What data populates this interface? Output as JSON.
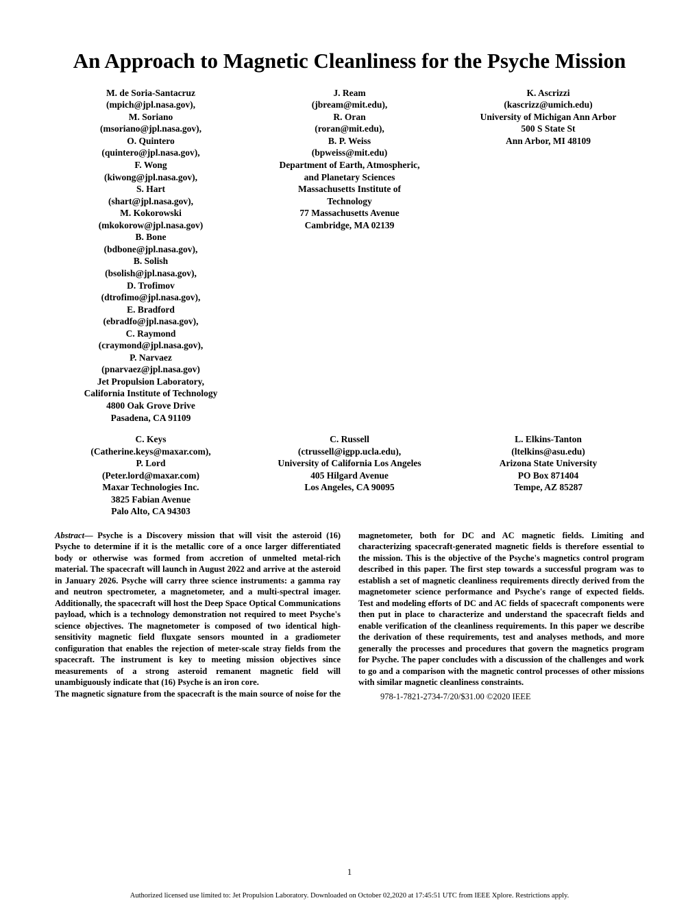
{
  "title": "An Approach to Magnetic Cleanliness for the Psyche Mission",
  "author_row1": {
    "col1": "M. de Soria-Santacruz\n(mpich@jpl.nasa.gov),\nM. Soriano\n(msoriano@jpl.nasa.gov),\nO. Quintero\n(quintero@jpl.nasa.gov),\nF. Wong\n(kiwong@jpl.nasa.gov),\nS. Hart\n(shart@jpl.nasa.gov),\nM. Kokorowski\n(mkokorow@jpl.nasa.gov)\nB. Bone\n(bdbone@jpl.nasa.gov),\nB. Solish\n(bsolish@jpl.nasa.gov),\nD. Trofimov\n(dtrofimo@jpl.nasa.gov),\nE. Bradford\n(ebradfo@jpl.nasa.gov),\nC. Raymond\n(craymond@jpl.nasa.gov),\nP. Narvaez\n(pnarvaez@jpl.nasa.gov)\nJet Propulsion Laboratory,\nCalifornia Institute of Technology\n4800 Oak Grove Drive\nPasadena, CA 91109",
    "col2": "J. Ream\n(jbream@mit.edu),\nR. Oran\n(roran@mit.edu),\nB. P. Weiss\n(bpweiss@mit.edu)\nDepartment of Earth, Atmospheric,\nand Planetary Sciences\nMassachusetts Institute of\nTechnology\n77 Massachusetts Avenue\nCambridge, MA 02139",
    "col3": "K. Ascrizzi\n(kascrizz@umich.edu)\nUniversity of Michigan Ann Arbor\n500 S State St\nAnn Arbor, MI 48109"
  },
  "author_row2": {
    "col1": "C. Keys\n(Catherine.keys@maxar.com),\nP. Lord\n(Peter.lord@maxar.com)\nMaxar Technologies Inc.\n3825 Fabian Avenue\nPalo Alto, CA 94303",
    "col2": "C. Russell\n(ctrussell@igpp.ucla.edu),\nUniversity of California Los Angeles\n405 Hilgard Avenue\nLos Angeles, CA 90095",
    "col3": "L. Elkins-Tanton\n(ltelkins@asu.edu)\nArizona State University\nPO Box 871404\nTempe, AZ 85287"
  },
  "abstract_label": "Abstract",
  "abstract_dash": "—",
  "abstract_p1": " Psyche is a Discovery mission  that will visit the asteroid (16) Psyche to determine if it is the metallic core of a once larger differentiated body or otherwise was formed from accretion of unmelted metal-rich material. The spacecraft will launch in August 2022 and arrive at the asteroid in January 2026. Psyche will carry three science instruments: a gamma ray and neutron spectrometer, a magnetometer, and a multi-spectral imager. Additionally, the spacecraft will host the Deep Space Optical Communications payload, which is a technology demonstration not required to meet Psyche's science objectives. The magnetometer is composed of two identical high-sensitivity magnetic field fluxgate sensors mounted in a gradiometer configuration that enables the rejection of meter-scale stray fields from the spacecraft. The instrument is key to meeting mission objectives since measurements of a strong asteroid remanent magnetic field will unambiguously indicate that (16) Psyche is an iron core.",
  "abstract_p2": "The magnetic signature from the spacecraft is the main source of noise for the magnetometer, both for DC and AC magnetic fields. Limiting and characterizing spacecraft-generated magnetic fields is therefore essential to the mission. This is the objective of the Psyche's magnetics control program described in this paper. The first step towards a successful program was to establish a set of magnetic cleanliness requirements directly derived from the magnetometer science performance and Psyche's range of expected fields. Test and modeling efforts of DC and AC fields of spacecraft components were then put in place to characterize and understand the spacecraft fields and enable verification of the cleanliness requirements. In this paper we describe the derivation of these requirements, test and analyses methods, and more generally the processes and procedures that govern the magnetics program for Psyche. The paper concludes with a discussion of the challenges and work to go and a comparison with the magnetic control processes of other missions with similar magnetic cleanliness constraints.",
  "copyright": "978-1-7821-2734-7/20/$31.00 ©2020 IEEE",
  "page_number": "1",
  "footer_note": "Authorized licensed use limited to: Jet Propulsion Laboratory. Downloaded on October 02,2020 at 17:45:51 UTC from IEEE Xplore.  Restrictions apply."
}
